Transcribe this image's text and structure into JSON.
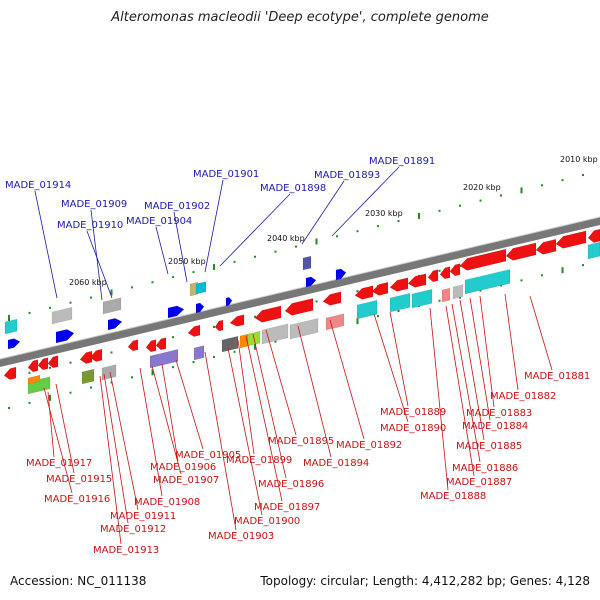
{
  "title": "Alteromonas macleodii 'Deep ecotype', complete genome",
  "accession": "Accession: NC_011138",
  "topology": "Topology: circular; Length: 4,412,282 bp; Genes: 4,128",
  "colors": {
    "forward": "#0000ee",
    "reverse": "#ee1111",
    "backbone": "#777777",
    "tick": "#228b22",
    "label_blue": "#1a1ab0",
    "label_red": "#cc1111"
  },
  "kbp_labels": [
    "2010 kbp",
    "2020 kbp",
    "2030 kbp",
    "2040 kbp",
    "2050 kbp",
    "2060 kbp"
  ],
  "forward_genes": [
    "MADE_01914",
    "MADE_01909",
    "MADE_01910",
    "MADE_01902",
    "MADE_01904",
    "MADE_01901",
    "MADE_01898",
    "MADE_01893",
    "MADE_01891"
  ],
  "reverse_genes": [
    "MADE_01881",
    "MADE_01882",
    "MADE_01883",
    "MADE_01884",
    "MADE_01885",
    "MADE_01886",
    "MADE_01887",
    "MADE_01888",
    "MADE_01889",
    "MADE_01890",
    "MADE_01892",
    "MADE_01894",
    "MADE_01895",
    "MADE_01896",
    "MADE_01897",
    "MADE_01899",
    "MADE_01900",
    "MADE_01903",
    "MADE_01905",
    "MADE_01906",
    "MADE_01907",
    "MADE_01908",
    "MADE_01911",
    "MADE_01912",
    "MADE_01913",
    "MADE_01915",
    "MADE_01916",
    "MADE_01917"
  ]
}
